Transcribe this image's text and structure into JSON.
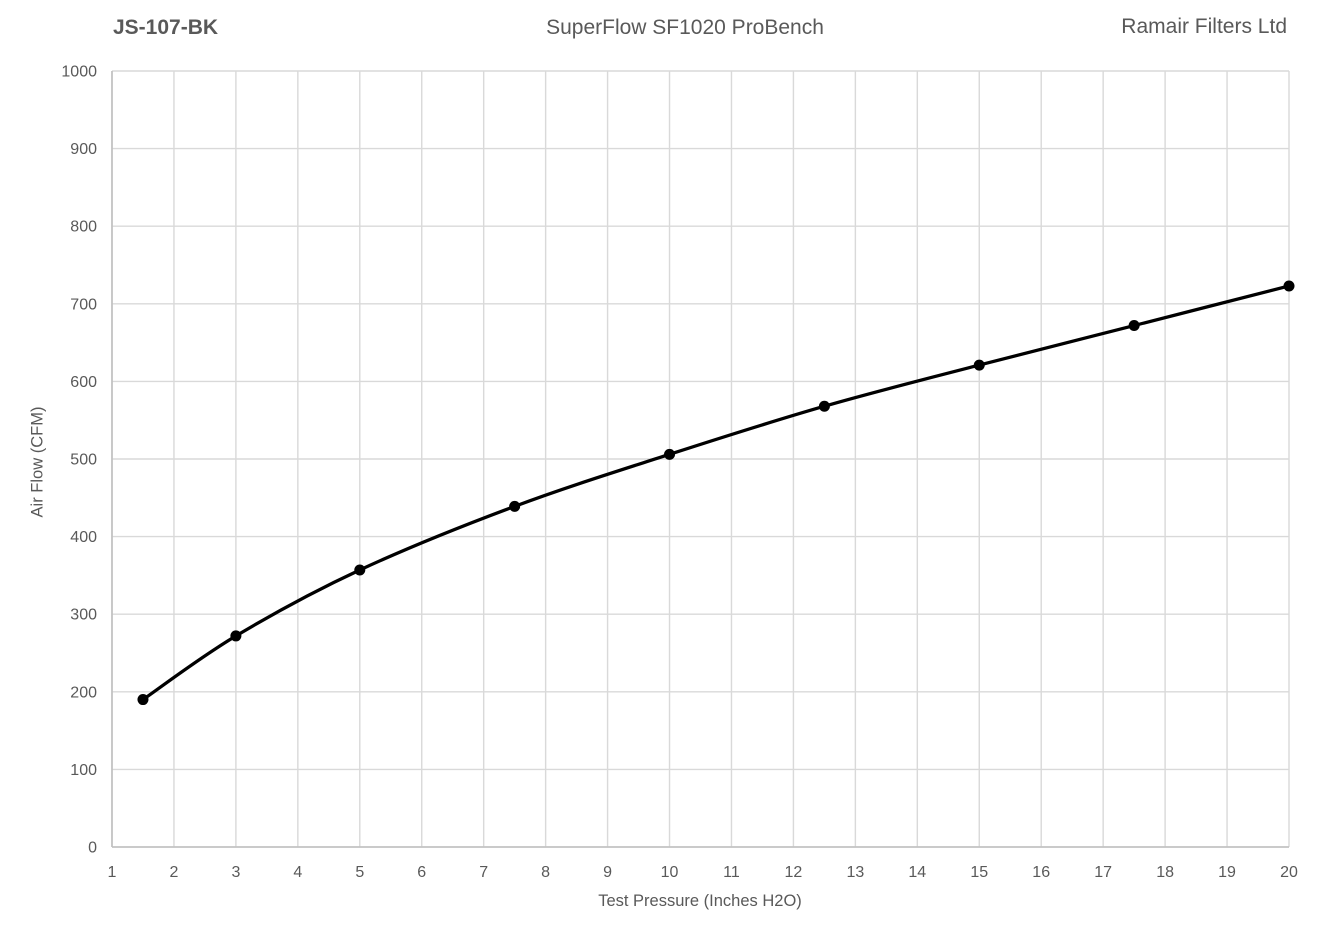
{
  "chart_data": {
    "type": "line",
    "title": "SuperFlow SF1020 ProBench",
    "title_left": "JS-107-BK",
    "title_right": "Ramair Filters Ltd",
    "xlabel": "Test Pressure (Inches H2O)",
    "ylabel": "Air Flow (CFM)",
    "xlim": [
      1,
      20
    ],
    "ylim": [
      0,
      1000
    ],
    "x_ticks": [
      1,
      2,
      3,
      4,
      5,
      6,
      7,
      8,
      9,
      10,
      11,
      12,
      13,
      14,
      15,
      16,
      17,
      18,
      19,
      20
    ],
    "y_ticks": [
      0,
      100,
      200,
      300,
      400,
      500,
      600,
      700,
      800,
      900,
      1000
    ],
    "grid": true,
    "legend": "none",
    "series": [
      {
        "name": "JS-107-BK",
        "x": [
          1.5,
          3,
          5,
          7.5,
          10,
          12.5,
          15,
          17.5,
          20
        ],
        "y": [
          190,
          272,
          357,
          439,
          506,
          568,
          621,
          672,
          723
        ],
        "color": "#000000",
        "marker": "circle",
        "smooth": true
      }
    ],
    "colors": {
      "line": "#000000",
      "marker": "#000000",
      "gridline": "#d9d9d9",
      "axis_line": "#bfbfbf",
      "text": "#595959",
      "background": "#ffffff"
    }
  }
}
